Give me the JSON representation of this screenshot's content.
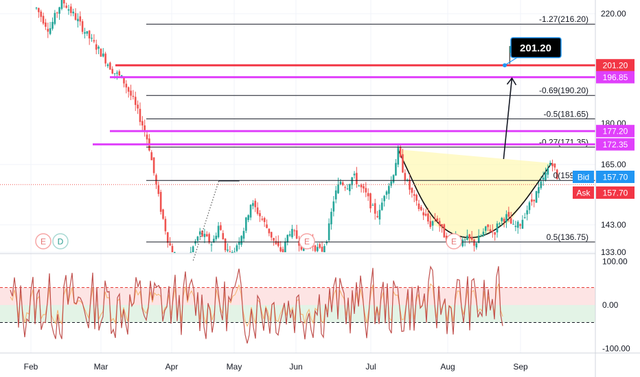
{
  "chart_data": {
    "type": "line",
    "x_ticks": [
      "Feb",
      "Mar",
      "Apr",
      "May",
      "Jun",
      "Jul",
      "Aug",
      "Sep"
    ],
    "main_axis": {
      "ylim": [
        133,
        225
      ],
      "ticks": [
        "220.00",
        "165.00",
        "143.00",
        "133.00"
      ],
      "tick_values": [
        220,
        165,
        143,
        133
      ],
      "partial_tick": {
        "label": "180.00",
        "value": 180
      }
    },
    "fib_levels": [
      {
        "label": "-1.27(216.20)",
        "value": 216.2
      },
      {
        "label": "-0.69(190.20)",
        "value": 190.2
      },
      {
        "label": "-0.5(181.65)",
        "value": 181.65
      },
      {
        "label": "-0.27(171.35)",
        "value": 171.35
      },
      {
        "label": "0(159.20)",
        "value": 159.2
      },
      {
        "label": "0.5(136.75)",
        "value": 136.75
      }
    ],
    "horizontal_levels": [
      {
        "label": "201.20",
        "value": 201.2,
        "color": "#f23645"
      },
      {
        "label": "196.85",
        "value": 196.85,
        "color": "#e040fb"
      },
      {
        "label": "177.20",
        "value": 177.2,
        "color": "#e040fb"
      },
      {
        "label": "172.35",
        "value": 172.35,
        "color": "#e040fb"
      }
    ],
    "target_callout": {
      "label": "201.20",
      "value": 201.2
    },
    "bid": {
      "label": "Bid",
      "value": "157.70",
      "color": "#2196f3"
    },
    "ask": {
      "label": "Ask",
      "value": "157.70",
      "color": "#f23645"
    },
    "last_price": 157.7,
    "event_markers": [
      "E",
      "D",
      "E",
      "E"
    ],
    "price_path": [
      [
        0.0,
        222
      ],
      [
        2.0,
        214
      ],
      [
        4.0,
        225
      ],
      [
        6.0,
        219
      ],
      [
        8.0,
        212
      ],
      [
        10.0,
        206
      ],
      [
        12.0,
        199
      ],
      [
        13.5,
        196
      ],
      [
        15.0,
        189
      ],
      [
        16.5,
        180
      ],
      [
        17.5,
        173
      ],
      [
        18.5,
        160
      ],
      [
        19.5,
        148
      ],
      [
        20.5,
        138
      ],
      [
        21.5,
        131
      ],
      [
        22.5,
        126
      ],
      [
        23.5,
        129
      ],
      [
        24.5,
        135
      ],
      [
        25.5,
        140
      ],
      [
        26.5,
        138
      ],
      [
        27.5,
        136
      ],
      [
        28.5,
        143
      ],
      [
        29.5,
        135
      ],
      [
        30.5,
        131
      ],
      [
        31.5,
        137
      ],
      [
        32.5,
        142
      ],
      [
        33.5,
        151
      ],
      [
        34.5,
        148
      ],
      [
        35.5,
        144
      ],
      [
        36.5,
        140
      ],
      [
        37.5,
        135
      ],
      [
        38.5,
        133
      ],
      [
        39.5,
        141
      ],
      [
        40.5,
        139
      ],
      [
        41.5,
        135
      ],
      [
        42.5,
        137
      ],
      [
        43.5,
        135
      ],
      [
        44.5,
        133
      ],
      [
        45.5,
        139
      ],
      [
        46.5,
        153
      ],
      [
        47.5,
        159
      ],
      [
        48.5,
        157
      ],
      [
        49.5,
        161
      ],
      [
        50.5,
        157
      ],
      [
        51.5,
        154
      ],
      [
        52.5,
        149
      ],
      [
        53.5,
        146
      ],
      [
        54.5,
        156
      ],
      [
        55.5,
        159
      ],
      [
        56.5,
        170
      ],
      [
        57.5,
        161
      ],
      [
        58.5,
        155
      ],
      [
        59.5,
        150
      ],
      [
        60.5,
        147
      ],
      [
        61.5,
        143
      ],
      [
        62.5,
        146
      ],
      [
        63.5,
        140
      ],
      [
        64.5,
        137
      ],
      [
        65.5,
        139
      ],
      [
        66.5,
        136
      ],
      [
        67.5,
        138
      ],
      [
        68.5,
        136
      ],
      [
        69.5,
        139
      ],
      [
        70.5,
        142
      ],
      [
        71.5,
        140
      ],
      [
        72.5,
        145
      ],
      [
        73.5,
        146
      ],
      [
        74.5,
        142
      ],
      [
        75.5,
        143
      ],
      [
        76.5,
        148
      ],
      [
        77.5,
        152
      ],
      [
        78.5,
        156
      ],
      [
        79.5,
        161
      ],
      [
        80.0,
        164
      ],
      [
        80.5,
        167
      ],
      [
        81.0,
        163
      ],
      [
        81.5,
        158
      ]
    ],
    "cup_arc": {
      "points": [
        [
          56.5,
          170.5
        ],
        [
          62,
          143
        ],
        [
          68,
          136.6
        ],
        [
          74,
          144
        ],
        [
          80.5,
          165.5
        ]
      ]
    },
    "projection_arrow": {
      "from": [
        73.0,
        167
      ],
      "to": [
        74.3,
        196.5
      ]
    },
    "flag_marker": {
      "x": 74.5,
      "value": 201.2,
      "color": "#089981"
    },
    "dotted_trend": {
      "from": [
        24.5,
        130
      ],
      "to": [
        28.5,
        159
      ]
    },
    "oscillator": {
      "ylim": [
        -110,
        110
      ],
      "ticks": [
        "100.00",
        "0.00",
        "-100.00"
      ],
      "tick_values": [
        100,
        0,
        -100
      ],
      "upper_band": 40,
      "lower_band": -40,
      "amplitude": 60
    }
  }
}
